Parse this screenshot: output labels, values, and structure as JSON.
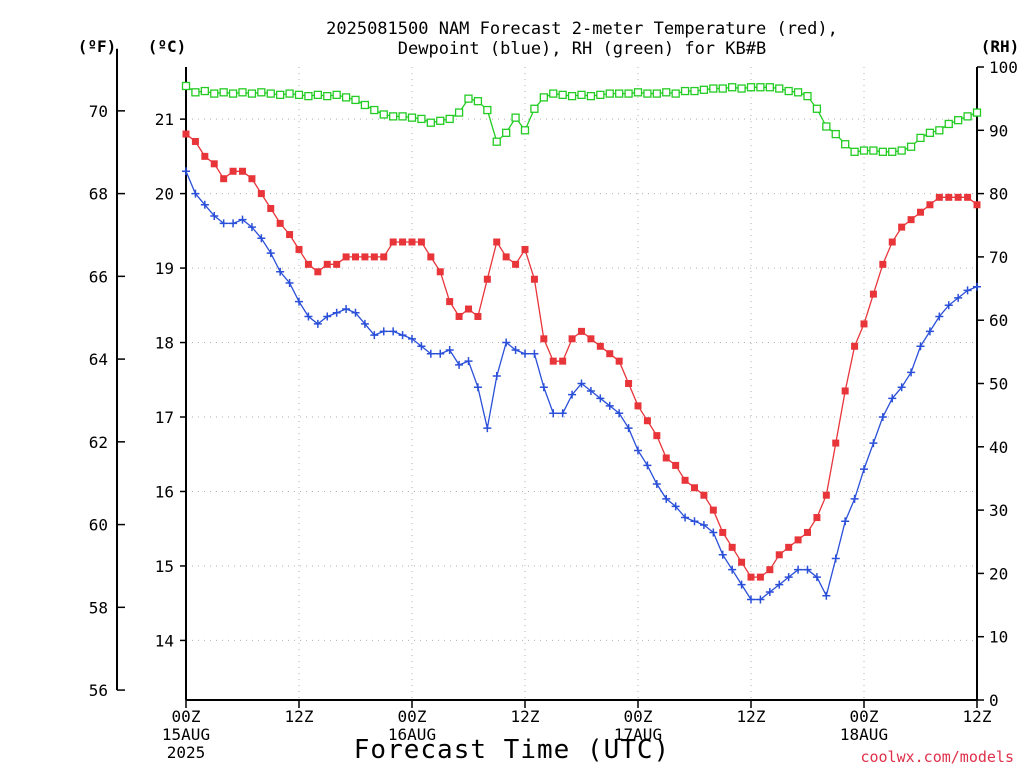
{
  "chart_data": {
    "type": "line",
    "title_line1": "2025081500 NAM Forecast 2-meter Temperature (red),",
    "title_line2": "Dewpoint (blue), RH (green) for KB#B",
    "xlabel": "Forecast Time (UTC)",
    "credit": "coolwx.com/models",
    "units": {
      "f": "(ºF)",
      "c": "(ºC)",
      "rh": "(RH)"
    },
    "x_hours_range": [
      0,
      84
    ],
    "y_celsius_range": [
      13.2,
      21.7
    ],
    "y_rh_range": [
      0,
      100
    ],
    "x_ticks": [
      {
        "h": 0,
        "label": "00Z",
        "date": "15AUG",
        "year": "2025"
      },
      {
        "h": 12,
        "label": "12Z",
        "date": "",
        "year": ""
      },
      {
        "h": 24,
        "label": "00Z",
        "date": "16AUG",
        "year": ""
      },
      {
        "h": 36,
        "label": "12Z",
        "date": "",
        "year": ""
      },
      {
        "h": 48,
        "label": "00Z",
        "date": "17AUG",
        "year": ""
      },
      {
        "h": 60,
        "label": "12Z",
        "date": "",
        "year": ""
      },
      {
        "h": 72,
        "label": "00Z",
        "date": "18AUG",
        "year": ""
      },
      {
        "h": 84,
        "label": "12Z",
        "date": "",
        "year": ""
      }
    ],
    "y_ticks_c": [
      "14",
      "15",
      "16",
      "17",
      "18",
      "19",
      "20",
      "21"
    ],
    "y_ticks_f": [
      "56",
      "58",
      "60",
      "62",
      "64",
      "66",
      "68",
      "70"
    ],
    "y_ticks_rh": [
      "0",
      "10",
      "20",
      "30",
      "40",
      "50",
      "60",
      "70",
      "80",
      "90",
      "100"
    ],
    "grid": true,
    "series": [
      {
        "color": "#e8353a",
        "marker": "filled-square",
        "unit": "C",
        "values": [
          [
            0,
            20.8
          ],
          [
            1,
            20.7
          ],
          [
            2,
            20.5
          ],
          [
            3,
            20.4
          ],
          [
            4,
            20.2
          ],
          [
            5,
            20.3
          ],
          [
            6,
            20.3
          ],
          [
            7,
            20.2
          ],
          [
            8,
            20.0
          ],
          [
            9,
            19.8
          ],
          [
            10,
            19.6
          ],
          [
            11,
            19.45
          ],
          [
            12,
            19.25
          ],
          [
            13,
            19.05
          ],
          [
            14,
            18.95
          ],
          [
            15,
            19.05
          ],
          [
            16,
            19.05
          ],
          [
            17,
            19.15
          ],
          [
            18,
            19.15
          ],
          [
            19,
            19.15
          ],
          [
            20,
            19.15
          ],
          [
            21,
            19.15
          ],
          [
            22,
            19.35
          ],
          [
            23,
            19.35
          ],
          [
            24,
            19.35
          ],
          [
            25,
            19.35
          ],
          [
            26,
            19.15
          ],
          [
            27,
            18.95
          ],
          [
            28,
            18.55
          ],
          [
            29,
            18.35
          ],
          [
            30,
            18.45
          ],
          [
            31,
            18.35
          ],
          [
            32,
            18.85
          ],
          [
            33,
            19.35
          ],
          [
            34,
            19.15
          ],
          [
            35,
            19.05
          ],
          [
            36,
            19.25
          ],
          [
            37,
            18.85
          ],
          [
            38,
            18.05
          ],
          [
            39,
            17.75
          ],
          [
            40,
            17.75
          ],
          [
            41,
            18.05
          ],
          [
            42,
            18.15
          ],
          [
            43,
            18.05
          ],
          [
            44,
            17.95
          ],
          [
            45,
            17.85
          ],
          [
            46,
            17.75
          ],
          [
            47,
            17.45
          ],
          [
            48,
            17.15
          ],
          [
            49,
            16.95
          ],
          [
            50,
            16.75
          ],
          [
            51,
            16.45
          ],
          [
            52,
            16.35
          ],
          [
            53,
            16.15
          ],
          [
            54,
            16.05
          ],
          [
            55,
            15.95
          ],
          [
            56,
            15.75
          ],
          [
            57,
            15.45
          ],
          [
            58,
            15.25
          ],
          [
            59,
            15.05
          ],
          [
            60,
            14.85
          ],
          [
            61,
            14.85
          ],
          [
            62,
            14.95
          ],
          [
            63,
            15.15
          ],
          [
            64,
            15.25
          ],
          [
            65,
            15.35
          ],
          [
            66,
            15.45
          ],
          [
            67,
            15.65
          ],
          [
            68,
            15.95
          ],
          [
            69,
            16.65
          ],
          [
            70,
            17.35
          ],
          [
            71,
            17.95
          ],
          [
            72,
            18.25
          ],
          [
            73,
            18.65
          ],
          [
            74,
            19.05
          ],
          [
            75,
            19.35
          ],
          [
            76,
            19.55
          ],
          [
            77,
            19.65
          ],
          [
            78,
            19.75
          ],
          [
            79,
            19.85
          ],
          [
            80,
            19.95
          ],
          [
            81,
            19.95
          ],
          [
            82,
            19.95
          ],
          [
            83,
            19.95
          ],
          [
            84,
            19.85
          ]
        ]
      },
      {
        "color": "#2a4fd8",
        "marker": "plus",
        "unit": "C",
        "values": [
          [
            0,
            20.3
          ],
          [
            1,
            20.0
          ],
          [
            2,
            19.85
          ],
          [
            3,
            19.7
          ],
          [
            4,
            19.6
          ],
          [
            5,
            19.6
          ],
          [
            6,
            19.65
          ],
          [
            7,
            19.55
          ],
          [
            8,
            19.4
          ],
          [
            9,
            19.2
          ],
          [
            10,
            18.95
          ],
          [
            11,
            18.8
          ],
          [
            12,
            18.55
          ],
          [
            13,
            18.35
          ],
          [
            14,
            18.25
          ],
          [
            15,
            18.35
          ],
          [
            16,
            18.4
          ],
          [
            17,
            18.45
          ],
          [
            18,
            18.4
          ],
          [
            19,
            18.25
          ],
          [
            20,
            18.1
          ],
          [
            21,
            18.15
          ],
          [
            22,
            18.15
          ],
          [
            23,
            18.1
          ],
          [
            24,
            18.05
          ],
          [
            25,
            17.95
          ],
          [
            26,
            17.85
          ],
          [
            27,
            17.85
          ],
          [
            28,
            17.9
          ],
          [
            29,
            17.7
          ],
          [
            30,
            17.75
          ],
          [
            31,
            17.4
          ],
          [
            32,
            16.85
          ],
          [
            33,
            17.55
          ],
          [
            34,
            18.0
          ],
          [
            35,
            17.9
          ],
          [
            36,
            17.85
          ],
          [
            37,
            17.85
          ],
          [
            38,
            17.4
          ],
          [
            39,
            17.05
          ],
          [
            40,
            17.05
          ],
          [
            41,
            17.3
          ],
          [
            42,
            17.45
          ],
          [
            43,
            17.35
          ],
          [
            44,
            17.25
          ],
          [
            45,
            17.15
          ],
          [
            46,
            17.05
          ],
          [
            47,
            16.85
          ],
          [
            48,
            16.55
          ],
          [
            49,
            16.35
          ],
          [
            50,
            16.1
          ],
          [
            51,
            15.9
          ],
          [
            52,
            15.8
          ],
          [
            53,
            15.65
          ],
          [
            54,
            15.6
          ],
          [
            55,
            15.55
          ],
          [
            56,
            15.45
          ],
          [
            57,
            15.15
          ],
          [
            58,
            14.95
          ],
          [
            59,
            14.75
          ],
          [
            60,
            14.55
          ],
          [
            61,
            14.55
          ],
          [
            62,
            14.65
          ],
          [
            63,
            14.75
          ],
          [
            64,
            14.85
          ],
          [
            65,
            14.95
          ],
          [
            66,
            14.95
          ],
          [
            67,
            14.85
          ],
          [
            68,
            14.6
          ],
          [
            69,
            15.1
          ],
          [
            70,
            15.6
          ],
          [
            71,
            15.9
          ],
          [
            72,
            16.3
          ],
          [
            73,
            16.65
          ],
          [
            74,
            17.0
          ],
          [
            75,
            17.25
          ],
          [
            76,
            17.4
          ],
          [
            77,
            17.6
          ],
          [
            78,
            17.95
          ],
          [
            79,
            18.15
          ],
          [
            80,
            18.35
          ],
          [
            81,
            18.5
          ],
          [
            82,
            18.6
          ],
          [
            83,
            18.7
          ],
          [
            84,
            18.75
          ]
        ]
      },
      {
        "color": "#22cc22",
        "marker": "open-square",
        "unit": "RH",
        "values": [
          [
            0,
            97
          ],
          [
            1,
            96
          ],
          [
            2,
            96.2
          ],
          [
            3,
            95.8
          ],
          [
            4,
            96
          ],
          [
            5,
            95.8
          ],
          [
            6,
            96
          ],
          [
            7,
            95.8
          ],
          [
            8,
            96
          ],
          [
            9,
            95.8
          ],
          [
            10,
            95.6
          ],
          [
            11,
            95.8
          ],
          [
            12,
            95.6
          ],
          [
            13,
            95.4
          ],
          [
            14,
            95.6
          ],
          [
            15,
            95.4
          ],
          [
            16,
            95.6
          ],
          [
            17,
            95.2
          ],
          [
            18,
            94.8
          ],
          [
            19,
            94
          ],
          [
            20,
            93.2
          ],
          [
            21,
            92.5
          ],
          [
            22,
            92.2
          ],
          [
            23,
            92.2
          ],
          [
            24,
            92
          ],
          [
            25,
            91.8
          ],
          [
            26,
            91.2
          ],
          [
            27,
            91.5
          ],
          [
            28,
            91.8
          ],
          [
            29,
            92.8
          ],
          [
            30,
            95
          ],
          [
            31,
            94.6
          ],
          [
            32,
            93.2
          ],
          [
            33,
            88.2
          ],
          [
            34,
            89.6
          ],
          [
            35,
            92
          ],
          [
            36,
            90
          ],
          [
            37,
            93.4
          ],
          [
            38,
            95.2
          ],
          [
            39,
            95.8
          ],
          [
            40,
            95.6
          ],
          [
            41,
            95.4
          ],
          [
            42,
            95.6
          ],
          [
            43,
            95.4
          ],
          [
            44,
            95.6
          ],
          [
            45,
            95.8
          ],
          [
            46,
            95.8
          ],
          [
            47,
            95.8
          ],
          [
            48,
            96
          ],
          [
            49,
            95.8
          ],
          [
            50,
            95.8
          ],
          [
            51,
            96
          ],
          [
            52,
            95.8
          ],
          [
            53,
            96.2
          ],
          [
            54,
            96.2
          ],
          [
            55,
            96.4
          ],
          [
            56,
            96.6
          ],
          [
            57,
            96.6
          ],
          [
            58,
            96.8
          ],
          [
            59,
            96.6
          ],
          [
            60,
            96.8
          ],
          [
            61,
            96.8
          ],
          [
            62,
            96.8
          ],
          [
            63,
            96.6
          ],
          [
            64,
            96.2
          ],
          [
            65,
            96
          ],
          [
            66,
            95.4
          ],
          [
            67,
            93.4
          ],
          [
            68,
            90.6
          ],
          [
            69,
            89.4
          ],
          [
            70,
            87.8
          ],
          [
            71,
            86.6
          ],
          [
            72,
            86.8
          ],
          [
            73,
            86.8
          ],
          [
            74,
            86.6
          ],
          [
            75,
            86.6
          ],
          [
            76,
            86.8
          ],
          [
            77,
            87.4
          ],
          [
            78,
            88.8
          ],
          [
            79,
            89.6
          ],
          [
            80,
            90
          ],
          [
            81,
            91
          ],
          [
            82,
            91.6
          ],
          [
            83,
            92.2
          ],
          [
            84,
            92.8
          ]
        ]
      }
    ]
  }
}
